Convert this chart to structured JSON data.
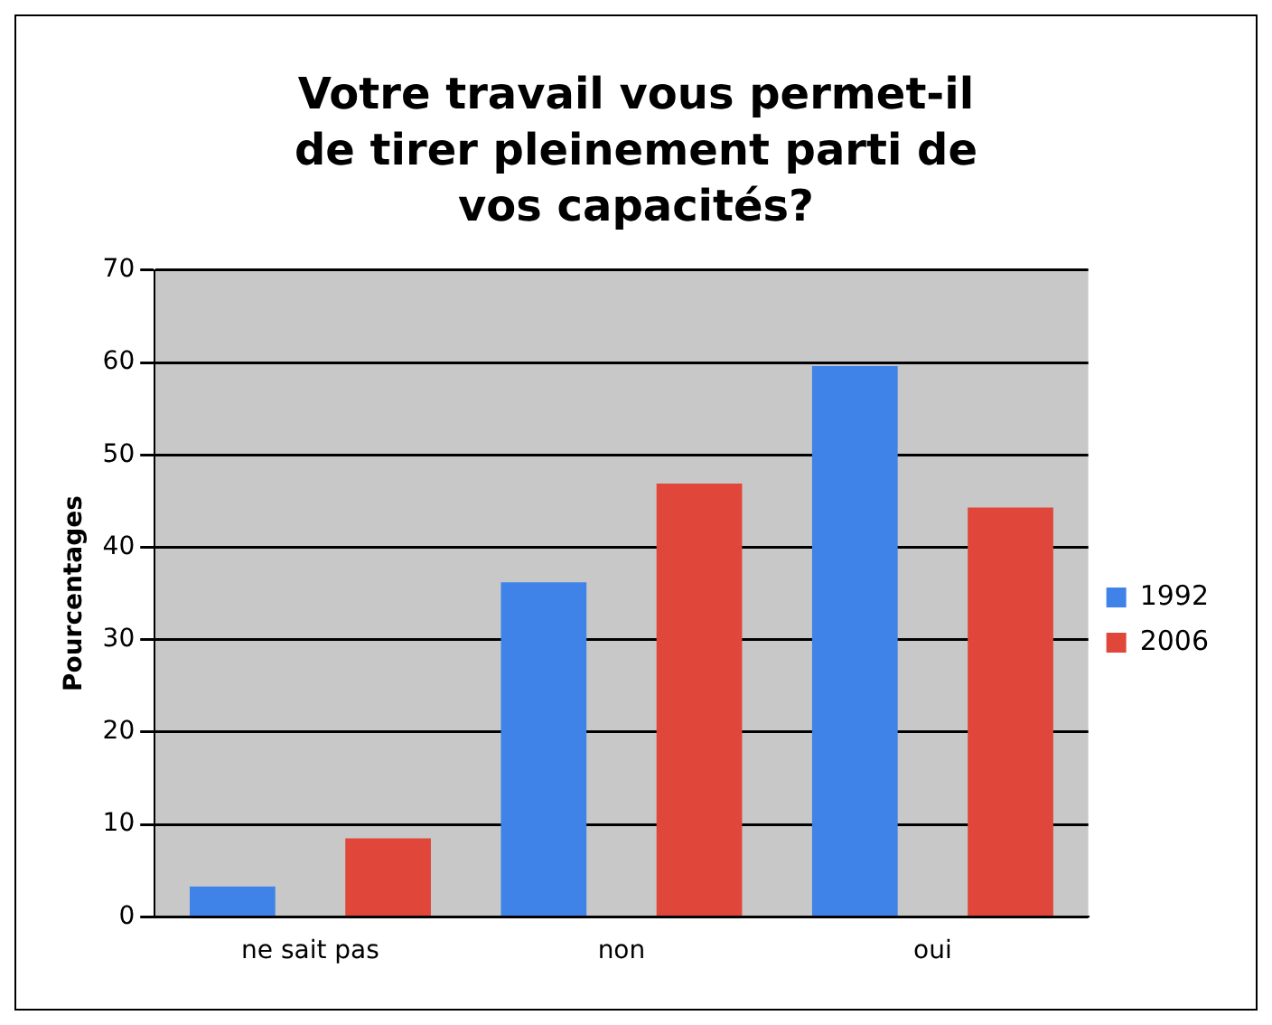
{
  "chart_data": {
    "type": "bar",
    "title": "Votre travail vous permet-il de tirer pleinement parti de vos capacités?",
    "ylabel": "Pourcentages",
    "categories": [
      "ne sait pas",
      "non",
      "oui"
    ],
    "series": [
      {
        "name": "1992",
        "color": "#3f83e8",
        "values": [
          3.3,
          36.2,
          59.6
        ]
      },
      {
        "name": "2006",
        "color": "#e0473a",
        "values": [
          8.5,
          46.9,
          44.3
        ]
      }
    ],
    "ylim": [
      0,
      70
    ],
    "yticks": [
      0,
      10,
      20,
      30,
      40,
      50,
      60,
      70
    ],
    "grid": "y",
    "legend": "right"
  }
}
